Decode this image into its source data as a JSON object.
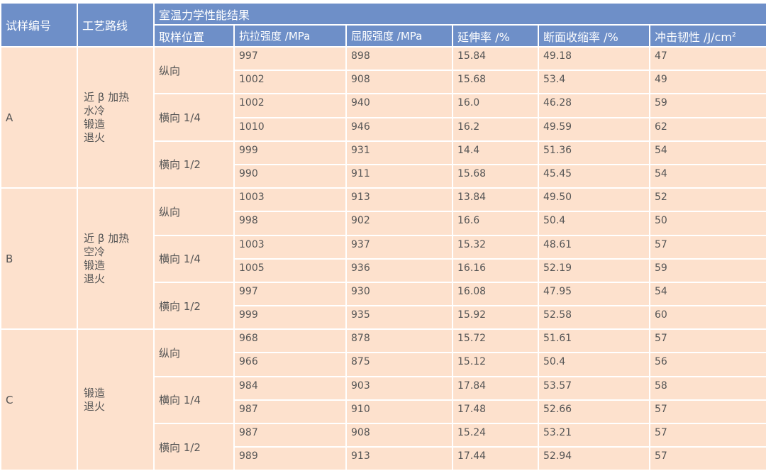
{
  "header": {
    "sample_id": "试样编号",
    "route": "工艺路线",
    "group_title": "室温力学性能结果",
    "columns": [
      "取样位置",
      "抗拉强度 /MPa",
      "屈服强度 /MPa",
      "延伸率 /%",
      "断面收缩率 /%",
      "冲击韧性 /J/cm"
    ],
    "impact_unit_superscript": "2"
  },
  "colors": {
    "header_bg": "#6e8fc8",
    "body_bg": "#fde1cd",
    "border": "#ffffff"
  },
  "samples": [
    {
      "id": "A",
      "route": "近 β 加热\n水冷\n锻造\n退火",
      "positions": [
        {
          "label": "纵向",
          "rows": [
            [
              "997",
              "898",
              "15.84",
              "49.18",
              "47"
            ],
            [
              "1002",
              "908",
              "15.68",
              "53.4",
              "49"
            ]
          ]
        },
        {
          "label": "横向 1/4",
          "rows": [
            [
              "1002",
              "940",
              "16.0",
              "46.28",
              "59"
            ],
            [
              "1010",
              "946",
              "16.2",
              "49.59",
              "62"
            ]
          ]
        },
        {
          "label": "横向 1/2",
          "rows": [
            [
              "999",
              "931",
              "14.4",
              "51.36",
              "54"
            ],
            [
              "990",
              "911",
              "15.68",
              "45.45",
              "54"
            ]
          ]
        }
      ]
    },
    {
      "id": "B",
      "route": "近 β 加热\n空冷\n锻造\n退火",
      "positions": [
        {
          "label": "纵向",
          "rows": [
            [
              "1003",
              "913",
              "13.84",
              "49.50",
              "52"
            ],
            [
              "998",
              "902",
              "16.6",
              "50.4",
              "50"
            ]
          ]
        },
        {
          "label": "横向 1/4",
          "rows": [
            [
              "1003",
              "937",
              "15.32",
              "48.61",
              "57"
            ],
            [
              "1005",
              "936",
              "16.16",
              "52.19",
              "59"
            ]
          ]
        },
        {
          "label": "横向 1/2",
          "rows": [
            [
              "997",
              "930",
              "16.08",
              "47.95",
              "54"
            ],
            [
              "999",
              "935",
              "15.92",
              "52.58",
              "60"
            ]
          ]
        }
      ]
    },
    {
      "id": "C",
      "route": "锻造\n退火",
      "positions": [
        {
          "label": "纵向",
          "rows": [
            [
              "968",
              "878",
              "15.72",
              "51.61",
              "57"
            ],
            [
              "966",
              "875",
              "15.12",
              "50.4",
              "56"
            ]
          ]
        },
        {
          "label": "横向 1/4",
          "rows": [
            [
              "984",
              "903",
              "17.84",
              "53.57",
              "58"
            ],
            [
              "987",
              "910",
              "17.48",
              "52.66",
              "57"
            ]
          ]
        },
        {
          "label": "横向 1/2",
          "rows": [
            [
              "987",
              "908",
              "15.24",
              "53.21",
              "57"
            ],
            [
              "989",
              "913",
              "17.44",
              "52.94",
              "57"
            ]
          ]
        }
      ]
    }
  ]
}
